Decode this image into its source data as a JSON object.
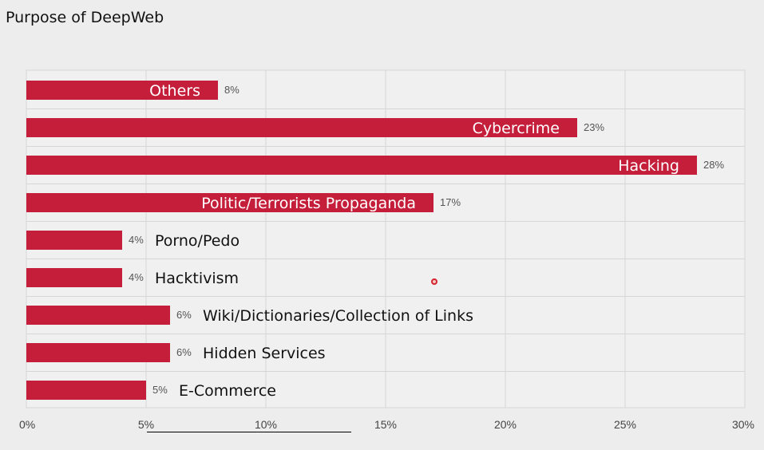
{
  "page_title": "Purpose of DeepWeb",
  "colors": {
    "bar": "#c41e3a",
    "background": "#ededed",
    "plot_background": "#f0f0f0",
    "grid": "#d6d6d6",
    "label_inside": "#ffffff",
    "label_outside": "#111111",
    "value_text": "#555555"
  },
  "chart_data": {
    "type": "bar",
    "orientation": "horizontal",
    "title": "Purpose of DeepWeb",
    "categories": [
      "Others",
      "Cybercrime",
      "Hacking",
      "Politic/Terrorists Propaganda",
      "Porno/Pedo",
      "Hacktivism",
      "Wiki/Dictionaries/Collection of Links",
      "Hidden Services",
      "E-Commerce"
    ],
    "values": [
      8,
      23,
      28,
      17,
      4,
      4,
      6,
      6,
      5
    ],
    "value_labels": [
      "8%",
      "23%",
      "28%",
      "17%",
      "4%",
      "4%",
      "6%",
      "6%",
      "5%"
    ],
    "category_label_placement": [
      "inside",
      "inside",
      "inside",
      "inside",
      "outside",
      "outside",
      "outside",
      "outside",
      "outside"
    ],
    "xlim": [
      0,
      30
    ],
    "xticks": [
      0,
      5,
      10,
      15,
      20,
      25,
      30
    ],
    "xtick_labels": [
      "0%",
      "5%",
      "10%",
      "15%",
      "20%",
      "25%",
      "30%"
    ],
    "xlabel": "",
    "ylabel": "",
    "grid": true,
    "legend": "none"
  }
}
